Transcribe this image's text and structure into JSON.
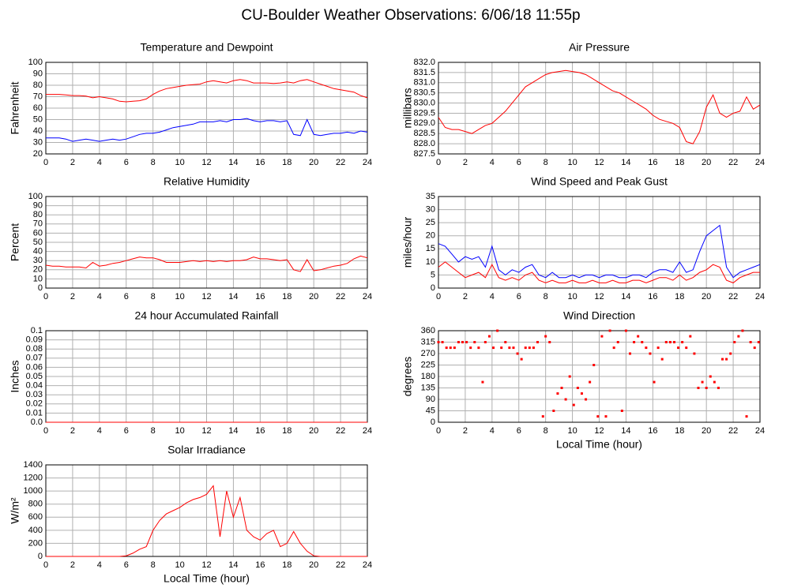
{
  "title": "CU-Boulder Weather Observations: 6/06/18 11:55p",
  "chart_data": [
    {
      "type": "line",
      "title": "Temperature and Dewpoint",
      "ylabel": "Fahrenheit",
      "xlim": [
        0,
        24
      ],
      "xticks": [
        0,
        2,
        4,
        6,
        8,
        10,
        12,
        14,
        16,
        18,
        20,
        22,
        24
      ],
      "ylim": [
        20,
        100
      ],
      "yticks": [
        20,
        30,
        40,
        50,
        60,
        70,
        80,
        90,
        100
      ],
      "grid": true,
      "x": [
        0,
        0.5,
        1,
        1.5,
        2,
        2.5,
        3,
        3.5,
        4,
        4.5,
        5,
        5.5,
        6,
        6.5,
        7,
        7.5,
        8,
        8.5,
        9,
        9.5,
        10,
        10.5,
        11,
        11.5,
        12,
        12.5,
        13,
        13.5,
        14,
        14.5,
        15,
        15.5,
        16,
        16.5,
        17,
        17.5,
        18,
        18.5,
        19,
        19.5,
        20,
        20.5,
        21,
        21.5,
        22,
        22.5,
        23,
        23.5,
        24
      ],
      "series": [
        {
          "color": "#ff0000",
          "values": [
            72,
            72,
            72,
            71.5,
            71,
            71,
            70.5,
            69,
            70,
            69,
            68,
            66,
            65.5,
            66,
            66.5,
            68,
            72,
            75,
            77,
            78,
            79,
            80,
            80.5,
            81,
            83,
            84,
            83,
            82,
            84,
            85,
            84,
            82,
            82,
            82,
            81.5,
            82,
            83,
            82,
            84,
            85,
            83,
            81,
            79,
            77,
            76,
            75,
            74,
            71,
            69
          ]
        },
        {
          "color": "#0000ff",
          "values": [
            34,
            34,
            34,
            33,
            31,
            32,
            33,
            32,
            31,
            32,
            33,
            32,
            33,
            35,
            37,
            38,
            38,
            39,
            41,
            43,
            44,
            45,
            46,
            48,
            48,
            48,
            49,
            48,
            50,
            50,
            51,
            49,
            48,
            49,
            49,
            48,
            49,
            37,
            36,
            50,
            37,
            36,
            37,
            38,
            38,
            39,
            38,
            40,
            39
          ]
        }
      ]
    },
    {
      "type": "line",
      "title": "Air Pressure",
      "ylabel": "millibars",
      "xlim": [
        0,
        24
      ],
      "xticks": [
        0,
        2,
        4,
        6,
        8,
        10,
        12,
        14,
        16,
        18,
        20,
        22,
        24
      ],
      "ylim": [
        827.5,
        832
      ],
      "yticks": [
        827.5,
        {
          "value": 828,
          "label": "828.0"
        },
        828.5,
        {
          "value": 829,
          "label": "829.0"
        },
        829.5,
        {
          "value": 830,
          "label": "830.0"
        },
        830.5,
        {
          "value": 831,
          "label": "831.0"
        },
        831.5,
        {
          "value": 832,
          "label": "832.0"
        }
      ],
      "grid": true,
      "x": [
        0,
        0.5,
        1,
        1.5,
        2,
        2.5,
        3,
        3.5,
        4,
        4.5,
        5,
        5.5,
        6,
        6.5,
        7,
        7.5,
        8,
        8.5,
        9,
        9.5,
        10,
        10.5,
        11,
        11.5,
        12,
        12.5,
        13,
        13.5,
        14,
        14.5,
        15,
        15.5,
        16,
        16.5,
        17,
        17.5,
        18,
        18.5,
        19,
        19.5,
        20,
        20.5,
        21,
        21.5,
        22,
        22.5,
        23,
        23.5,
        24
      ],
      "series": [
        {
          "color": "#ff0000",
          "values": [
            829.3,
            828.8,
            828.7,
            828.7,
            828.6,
            828.5,
            828.7,
            828.9,
            829.0,
            829.3,
            829.6,
            830.0,
            830.4,
            830.8,
            831.0,
            831.2,
            831.4,
            831.5,
            831.55,
            831.6,
            831.55,
            831.5,
            831.4,
            831.2,
            831.0,
            830.8,
            830.6,
            830.5,
            830.3,
            830.1,
            829.9,
            829.7,
            829.4,
            829.2,
            829.1,
            829.0,
            828.8,
            828.1,
            828.0,
            828.6,
            829.8,
            830.4,
            829.5,
            829.3,
            829.5,
            829.6,
            830.3,
            829.7,
            829.9
          ]
        }
      ]
    },
    {
      "type": "line",
      "title": "Relative Humidity",
      "ylabel": "Percent",
      "xlim": [
        0,
        24
      ],
      "xticks": [
        0,
        2,
        4,
        6,
        8,
        10,
        12,
        14,
        16,
        18,
        20,
        22,
        24
      ],
      "ylim": [
        0,
        100
      ],
      "yticks": [
        0,
        10,
        20,
        30,
        40,
        50,
        60,
        70,
        80,
        90,
        100
      ],
      "grid": true,
      "x": [
        0,
        0.5,
        1,
        1.5,
        2,
        2.5,
        3,
        3.5,
        4,
        4.5,
        5,
        5.5,
        6,
        6.5,
        7,
        7.5,
        8,
        8.5,
        9,
        9.5,
        10,
        10.5,
        11,
        11.5,
        12,
        12.5,
        13,
        13.5,
        14,
        14.5,
        15,
        15.5,
        16,
        16.5,
        17,
        17.5,
        18,
        18.5,
        19,
        19.5,
        20,
        20.5,
        21,
        21.5,
        22,
        22.5,
        23,
        23.5,
        24
      ],
      "series": [
        {
          "color": "#ff0000",
          "values": [
            25,
            24,
            24,
            23,
            23,
            23,
            22,
            28,
            24,
            25,
            27,
            28,
            30,
            32,
            34,
            33,
            33,
            31,
            28,
            28,
            28,
            29,
            30,
            29,
            30,
            29,
            30,
            29,
            30,
            30,
            31,
            34,
            32,
            32,
            31,
            30,
            31,
            20,
            18,
            31,
            19,
            20,
            22,
            24,
            25,
            27,
            32,
            35,
            33
          ]
        }
      ]
    },
    {
      "type": "line",
      "title": "Wind Speed and Peak Gust",
      "ylabel": "miles/hour",
      "xlim": [
        0,
        24
      ],
      "xticks": [
        0,
        2,
        4,
        6,
        8,
        10,
        12,
        14,
        16,
        18,
        20,
        22,
        24
      ],
      "ylim": [
        0,
        35
      ],
      "yticks": [
        0,
        5,
        10,
        15,
        20,
        25,
        30,
        35
      ],
      "grid": true,
      "x": [
        0,
        0.5,
        1,
        1.5,
        2,
        2.5,
        3,
        3.5,
        4,
        4.5,
        5,
        5.5,
        6,
        6.5,
        7,
        7.5,
        8,
        8.5,
        9,
        9.5,
        10,
        10.5,
        11,
        11.5,
        12,
        12.5,
        13,
        13.5,
        14,
        14.5,
        15,
        15.5,
        16,
        16.5,
        17,
        17.5,
        18,
        18.5,
        19,
        19.5,
        20,
        20.5,
        21,
        21.5,
        22,
        22.5,
        23,
        23.5,
        24
      ],
      "series": [
        {
          "color": "#ff0000",
          "values": [
            8,
            10,
            8,
            6,
            4,
            5,
            6,
            4,
            9,
            4,
            3,
            4,
            3,
            5,
            6,
            3,
            2,
            3,
            2,
            2,
            3,
            2,
            2,
            3,
            2,
            2,
            3,
            2,
            2,
            3,
            3,
            2,
            3,
            4,
            4,
            3,
            5,
            3,
            4,
            6,
            7,
            9,
            8,
            3,
            2,
            4,
            5,
            6,
            6
          ]
        },
        {
          "color": "#0000ff",
          "values": [
            17,
            16,
            13,
            10,
            12,
            11,
            12,
            8,
            16,
            7,
            5,
            7,
            6,
            8,
            9,
            5,
            4,
            6,
            4,
            4,
            5,
            4,
            5,
            5,
            4,
            5,
            5,
            4,
            4,
            5,
            5,
            4,
            6,
            7,
            7,
            6,
            10,
            6,
            7,
            14,
            20,
            22,
            24,
            8,
            4,
            6,
            7,
            8,
            9
          ]
        }
      ]
    },
    {
      "type": "line",
      "title": "24 hour Accumulated Rainfall",
      "ylabel": "Inches",
      "xlim": [
        0,
        24
      ],
      "xticks": [
        0,
        2,
        4,
        6,
        8,
        10,
        12,
        14,
        16,
        18,
        20,
        22,
        24
      ],
      "ylim": [
        0,
        0.1
      ],
      "yticks": [
        {
          "value": 0,
          "label": "0.0"
        },
        0.01,
        0.02,
        0.03,
        0.04,
        0.05,
        0.06,
        0.07,
        0.08,
        0.09,
        0.1
      ],
      "grid": true,
      "x": [
        0,
        24
      ],
      "series": [
        {
          "color": "#ff0000",
          "values": [
            0,
            0
          ]
        }
      ]
    },
    {
      "type": "scatter",
      "title": "Wind Direction",
      "ylabel": "degrees",
      "xlabel": "Local Time (hour)",
      "xlim": [
        0,
        24
      ],
      "xticks": [
        0,
        2,
        4,
        6,
        8,
        10,
        12,
        14,
        16,
        18,
        20,
        22,
        24
      ],
      "ylim": [
        0,
        360
      ],
      "yticks": [
        0,
        45,
        90,
        135,
        180,
        225,
        270,
        315,
        360
      ],
      "grid": true,
      "x": [
        0,
        0.3,
        0.6,
        0.9,
        1.2,
        1.5,
        1.8,
        2.1,
        2.4,
        2.7,
        3.0,
        3.3,
        3.5,
        3.8,
        4.1,
        4.4,
        4.7,
        5.0,
        5.3,
        5.6,
        5.9,
        6.2,
        6.5,
        6.8,
        7.1,
        7.4,
        7.8,
        8.0,
        8.3,
        8.6,
        8.9,
        9.2,
        9.5,
        9.8,
        10.1,
        10.4,
        10.7,
        11.0,
        11.3,
        11.6,
        11.9,
        12.2,
        12.5,
        12.8,
        13.1,
        13.4,
        13.7,
        14.0,
        14.3,
        14.6,
        14.9,
        15.2,
        15.5,
        15.8,
        16.1,
        16.4,
        16.7,
        17.0,
        17.3,
        17.6,
        17.9,
        18.2,
        18.5,
        18.8,
        19.1,
        19.4,
        19.7,
        20.0,
        20.3,
        20.6,
        20.9,
        21.2,
        21.5,
        21.8,
        22.1,
        22.4,
        22.7,
        23.0,
        23.3,
        23.6,
        23.9
      ],
      "series": [
        {
          "color": "#ff0000",
          "values": [
            315,
            315,
            293,
            293,
            293,
            315,
            315,
            315,
            293,
            315,
            293,
            158,
            315,
            338,
            293,
            360,
            293,
            315,
            293,
            293,
            270,
            248,
            293,
            293,
            293,
            315,
            23,
            338,
            315,
            45,
            113,
            135,
            90,
            180,
            68,
            135,
            113,
            90,
            158,
            225,
            23,
            338,
            23,
            360,
            293,
            315,
            45,
            360,
            270,
            315,
            338,
            315,
            293,
            270,
            158,
            293,
            248,
            315,
            315,
            315,
            293,
            315,
            293,
            338,
            270,
            135,
            158,
            135,
            180,
            158,
            135,
            248,
            248,
            270,
            315,
            338,
            360,
            23,
            315,
            293,
            315
          ]
        }
      ]
    },
    {
      "type": "line",
      "title": "Solar Irradiance",
      "ylabel": "W/m²",
      "xlabel": "Local Time (hour)",
      "xlim": [
        0,
        24
      ],
      "xticks": [
        0,
        2,
        4,
        6,
        8,
        10,
        12,
        14,
        16,
        18,
        20,
        22,
        24
      ],
      "ylim": [
        0,
        1400
      ],
      "yticks": [
        0,
        200,
        400,
        600,
        800,
        1000,
        1200,
        1400
      ],
      "grid": true,
      "x": [
        0,
        0.5,
        1,
        1.5,
        2,
        2.5,
        3,
        3.5,
        4,
        4.5,
        5,
        5.5,
        6,
        6.5,
        7,
        7.5,
        8,
        8.5,
        9,
        9.5,
        10,
        10.5,
        11,
        11.5,
        12,
        12.5,
        13,
        13.5,
        14,
        14.5,
        15,
        15.5,
        16,
        16.5,
        17,
        17.5,
        18,
        18.5,
        19,
        19.5,
        20,
        20.5,
        21,
        21.5,
        22,
        22.5,
        23,
        23.5,
        24
      ],
      "series": [
        {
          "color": "#ff0000",
          "values": [
            0,
            0,
            0,
            0,
            0,
            0,
            0,
            0,
            0,
            0,
            0,
            0,
            10,
            50,
            110,
            150,
            400,
            550,
            650,
            700,
            750,
            820,
            870,
            900,
            950,
            1080,
            300,
            1000,
            600,
            900,
            400,
            300,
            250,
            350,
            400,
            150,
            200,
            380,
            200,
            80,
            10,
            0,
            0,
            0,
            0,
            0,
            0,
            0,
            0
          ]
        }
      ]
    }
  ]
}
